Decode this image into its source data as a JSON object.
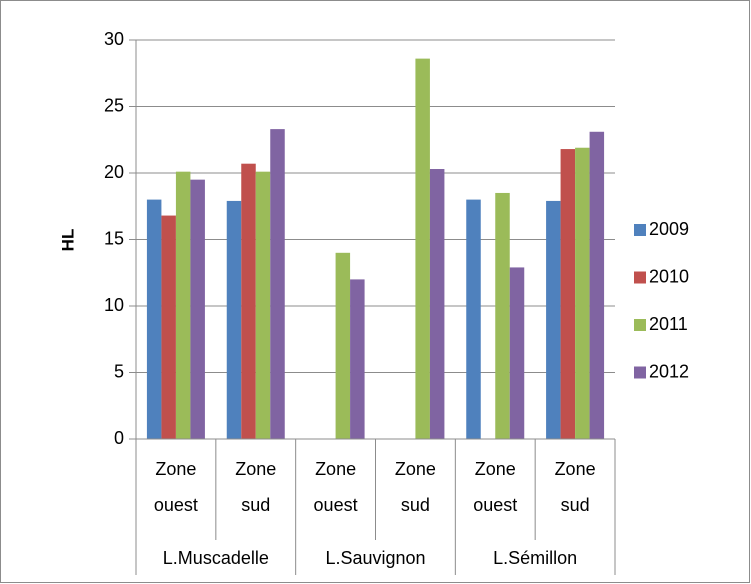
{
  "chart_data": {
    "type": "bar",
    "ylabel": "HL",
    "ylim": [
      0,
      30
    ],
    "yticks": [
      0,
      5,
      10,
      15,
      20,
      25,
      30
    ],
    "grid": true,
    "legend_position": "right",
    "groups": [
      {
        "label": "L.Muscadelle",
        "categories": [
          {
            "line1": "Zone",
            "line2": "ouest"
          },
          {
            "line1": "Zone",
            "line2": "sud"
          }
        ]
      },
      {
        "label": "L.Sauvignon",
        "categories": [
          {
            "line1": "Zone",
            "line2": "ouest"
          },
          {
            "line1": "Zone",
            "line2": "sud"
          }
        ]
      },
      {
        "label": "L.Sémillon",
        "categories": [
          {
            "line1": "Zone",
            "line2": "ouest"
          },
          {
            "line1": "Zone",
            "line2": "sud"
          }
        ]
      }
    ],
    "series": [
      {
        "name": "2009",
        "color": "#4f81bd",
        "values": [
          18.0,
          17.9,
          null,
          null,
          18.0,
          17.9
        ]
      },
      {
        "name": "2010",
        "color": "#c0504d",
        "values": [
          16.8,
          20.7,
          null,
          null,
          null,
          21.8
        ]
      },
      {
        "name": "2011",
        "color": "#9bbb59",
        "values": [
          20.1,
          20.1,
          14.0,
          28.6,
          18.5,
          21.9
        ]
      },
      {
        "name": "2012",
        "color": "#8064a2",
        "values": [
          19.5,
          23.3,
          12.0,
          20.3,
          12.9,
          23.1
        ]
      }
    ]
  }
}
